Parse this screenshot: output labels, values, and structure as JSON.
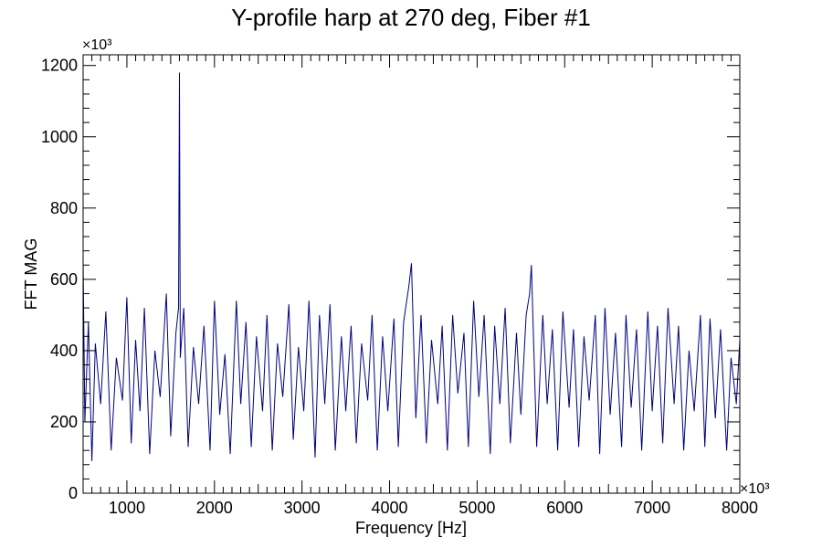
{
  "chart_data": {
    "type": "line",
    "title": "Y-profile harp at 270 deg, Fiber #1",
    "xlabel": "Frequency [Hz]",
    "ylabel": "FFT MAG",
    "x_multiplier": "×10³",
    "y_multiplier": "×10³",
    "xlim": [
      500,
      8000
    ],
    "ylim": [
      0,
      1230
    ],
    "x_ticks": [
      1000,
      2000,
      3000,
      4000,
      5000,
      6000,
      7000,
      8000
    ],
    "x_tick_labels": [
      "1000",
      "2000",
      "3000",
      "4000",
      "5000",
      "6000",
      "7000",
      "8000"
    ],
    "y_ticks": [
      0,
      200,
      400,
      600,
      800,
      1000,
      1200
    ],
    "y_tick_labels": [
      "0",
      "200",
      "400",
      "600",
      "800",
      "1000",
      "1200"
    ],
    "series_color": "#000080",
    "grid": false,
    "series": [
      {
        "x": [
          500,
          520,
          560,
          600,
          640,
          700,
          760,
          820,
          880,
          950,
          1000,
          1050,
          1100,
          1150,
          1200,
          1260,
          1320,
          1380,
          1450,
          1500,
          1560,
          1590,
          1600,
          1610,
          1650,
          1700,
          1760,
          1820,
          1880,
          1950,
          2000,
          2060,
          2120,
          2180,
          2250,
          2300,
          2360,
          2420,
          2480,
          2550,
          2600,
          2660,
          2720,
          2780,
          2850,
          2900,
          2960,
          3020,
          3080,
          3150,
          3200,
          3260,
          3320,
          3380,
          3450,
          3500,
          3560,
          3620,
          3680,
          3750,
          3800,
          3860,
          3920,
          3980,
          4050,
          4100,
          4160,
          4220,
          4250,
          4300,
          4360,
          4420,
          4480,
          4550,
          4600,
          4660,
          4720,
          4780,
          4850,
          4900,
          4960,
          5020,
          5080,
          5150,
          5200,
          5260,
          5320,
          5380,
          5450,
          5500,
          5560,
          5600,
          5620,
          5680,
          5750,
          5800,
          5860,
          5920,
          5980,
          6050,
          6100,
          6160,
          6220,
          6280,
          6350,
          6400,
          6460,
          6520,
          6580,
          6650,
          6700,
          6760,
          6820,
          6880,
          6950,
          7000,
          7060,
          7120,
          7180,
          7250,
          7300,
          7360,
          7420,
          7480,
          7550,
          7600,
          7660,
          7720,
          7780,
          7850,
          7900,
          7960,
          8000
        ],
        "y": [
          650,
          200,
          480,
          90,
          420,
          250,
          510,
          120,
          380,
          260,
          550,
          140,
          430,
          230,
          520,
          110,
          400,
          270,
          560,
          160,
          450,
          520,
          1180,
          380,
          520,
          130,
          410,
          250,
          470,
          120,
          540,
          220,
          390,
          110,
          540,
          250,
          480,
          130,
          440,
          230,
          500,
          120,
          420,
          270,
          530,
          150,
          410,
          230,
          540,
          100,
          500,
          250,
          530,
          120,
          440,
          230,
          470,
          140,
          420,
          260,
          500,
          120,
          440,
          230,
          490,
          130,
          480,
          580,
          645,
          210,
          500,
          140,
          430,
          250,
          470,
          120,
          500,
          280,
          450,
          130,
          540,
          270,
          500,
          110,
          470,
          250,
          520,
          140,
          450,
          220,
          500,
          560,
          640,
          130,
          500,
          250,
          460,
          120,
          510,
          240,
          460,
          130,
          440,
          260,
          500,
          110,
          520,
          220,
          450,
          130,
          500,
          240,
          460,
          120,
          510,
          230,
          470,
          140,
          520,
          250,
          470,
          120,
          400,
          230,
          500,
          130,
          490,
          210,
          460,
          120,
          380,
          250,
          430
        ]
      }
    ]
  }
}
